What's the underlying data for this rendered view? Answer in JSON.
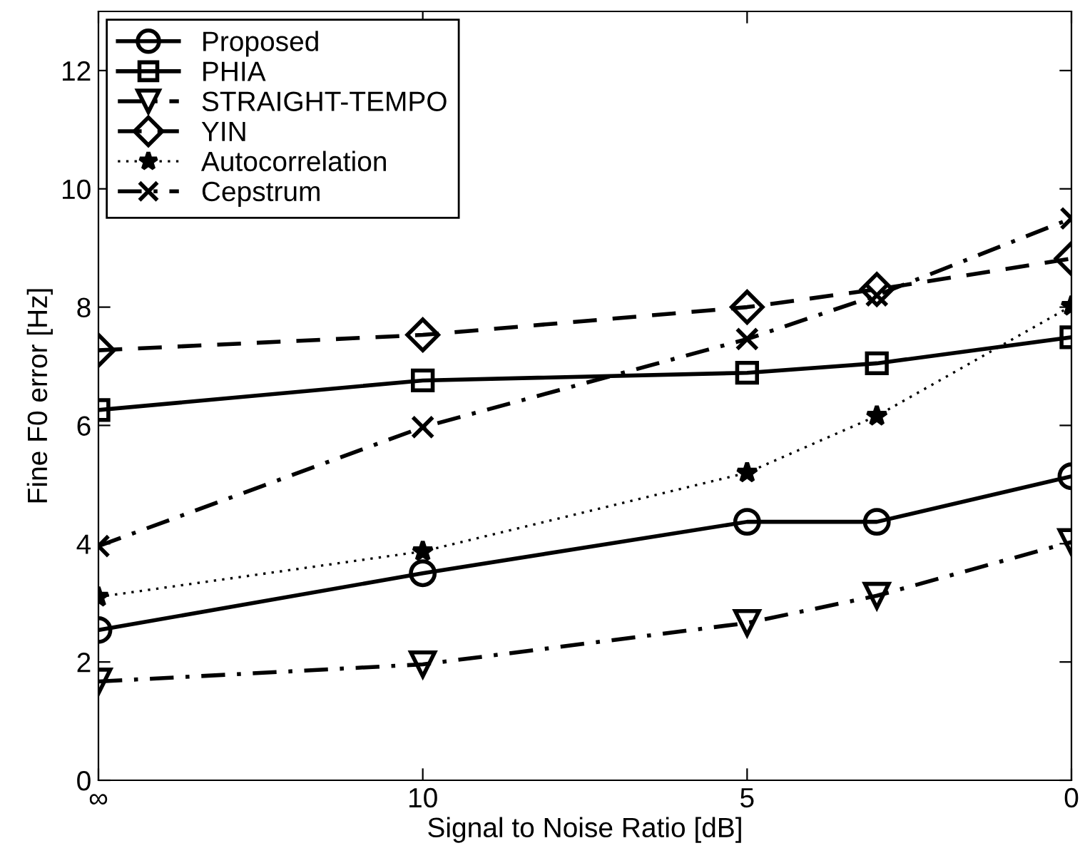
{
  "chart_data": {
    "type": "line",
    "xlabel": "Signal to Noise Ratio [dB]",
    "ylabel": "Fine F0 error [Hz]",
    "x": [
      15,
      10,
      5,
      3,
      0
    ],
    "xlim": [
      15,
      0
    ],
    "xticks": [
      {
        "value": 15,
        "label": "∞"
      },
      10,
      5,
      0
    ],
    "ylim": [
      0,
      13
    ],
    "yticks": [
      0,
      2,
      4,
      6,
      8,
      10,
      12
    ],
    "grid": false,
    "legend": "top left",
    "series": [
      {
        "name": "Proposed",
        "color": "#000000",
        "marker": "circle",
        "line_style": "solid",
        "values": [
          2.54,
          3.5,
          4.37,
          4.37,
          5.14
        ]
      },
      {
        "name": "PHIA",
        "color": "#000000",
        "marker": "square",
        "line_style": "solid",
        "values": [
          6.26,
          6.76,
          6.89,
          7.05,
          7.49
        ]
      },
      {
        "name": "STRAIGHT-TEMPO",
        "color": "#000000",
        "marker": "triangle",
        "line_style": "dashdot",
        "values": [
          1.67,
          1.96,
          2.66,
          3.12,
          4.03
        ]
      },
      {
        "name": "YIN",
        "color": "#000000",
        "marker": "diamond",
        "line_style": "dashed",
        "values": [
          7.27,
          7.53,
          8.0,
          8.3,
          8.82
        ]
      },
      {
        "name": "Autocorrelation",
        "color": "#000000",
        "marker": "star",
        "line_style": "dotted",
        "values": [
          3.1,
          3.87,
          5.2,
          6.16,
          8.02
        ]
      },
      {
        "name": "Cepstrum",
        "color": "#000000",
        "marker": "cross",
        "line_style": "dashdot",
        "values": [
          3.96,
          5.97,
          7.46,
          8.2,
          9.5
        ]
      }
    ]
  }
}
